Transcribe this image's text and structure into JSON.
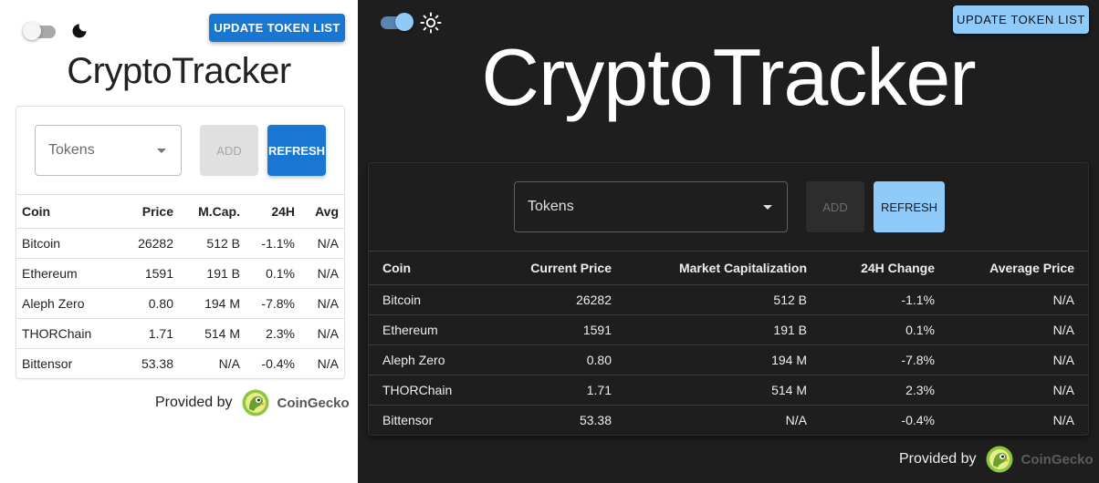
{
  "app": {
    "title": "CryptoTracker"
  },
  "buttons": {
    "update_token_list": "UPDATE TOKEN LIST",
    "add": "ADD",
    "refresh": "REFRESH"
  },
  "select": {
    "label": "Tokens"
  },
  "theme_toggle": {
    "light": {
      "enabled": false,
      "icon": "moon-icon"
    },
    "dark": {
      "enabled": true,
      "icon": "sun-icon"
    }
  },
  "table_light": {
    "headers": [
      "Coin",
      "Price",
      "M.Cap.",
      "24H",
      "Avg"
    ],
    "rows": [
      [
        "Bitcoin",
        "26282",
        "512 B",
        "-1.1%",
        "N/A"
      ],
      [
        "Ethereum",
        "1591",
        "191 B",
        "0.1%",
        "N/A"
      ],
      [
        "Aleph Zero",
        "0.80",
        "194 M",
        "-7.8%",
        "N/A"
      ],
      [
        "THORChain",
        "1.71",
        "514 M",
        "2.3%",
        "N/A"
      ],
      [
        "Bittensor",
        "53.38",
        "N/A",
        "-0.4%",
        "N/A"
      ]
    ]
  },
  "table_dark": {
    "headers": [
      "Coin",
      "Current Price",
      "Market Capitalization",
      "24H Change",
      "Average Price"
    ],
    "rows": [
      [
        "Bitcoin",
        "26282",
        "512 B",
        "-1.1%",
        "N/A"
      ],
      [
        "Ethereum",
        "1591",
        "191 B",
        "0.1%",
        "N/A"
      ],
      [
        "Aleph Zero",
        "0.80",
        "194 M",
        "-7.8%",
        "N/A"
      ],
      [
        "THORChain",
        "1.71",
        "514 M",
        "2.3%",
        "N/A"
      ],
      [
        "Bittensor",
        "53.38",
        "N/A",
        "-0.4%",
        "N/A"
      ]
    ]
  },
  "footer": {
    "provided_by": "Provided by",
    "brand": "CoinGecko",
    "logo": "coingecko-logo"
  },
  "colors": {
    "primary_light": "#1976d2",
    "primary_dark": "#90caf9",
    "dark_background": "#1e1e1e"
  }
}
